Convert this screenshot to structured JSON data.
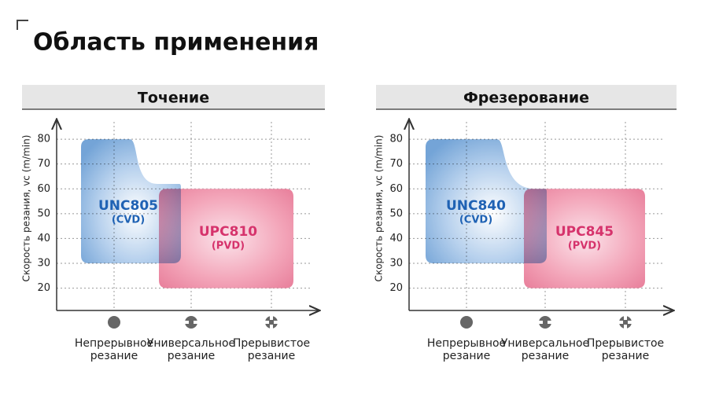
{
  "title": "Область применения",
  "panels": [
    {
      "heading": "Точение",
      "y_label": "Скорость резания, vc (m/min)",
      "ylim": [
        11,
        87
      ],
      "yticks": [
        20,
        30,
        40,
        50,
        60,
        70,
        80
      ],
      "categories": [
        [
          "Непрерывное",
          "резание"
        ],
        [
          "Универсальное",
          "резание"
        ],
        [
          "Прерывистое",
          "резание"
        ]
      ],
      "regions": [
        {
          "label": "UNC805",
          "sublabel": "(CVD)",
          "low": 30,
          "high": 80,
          "step": 62
        },
        {
          "label": "UPC810",
          "sublabel": "(PVD)",
          "low": 20,
          "high": 60
        }
      ]
    },
    {
      "heading": "Фрезерование",
      "y_label": "Скорость резания, vc (m/min)",
      "ylim": [
        11,
        87
      ],
      "yticks": [
        20,
        30,
        40,
        50,
        60,
        70,
        80
      ],
      "categories": [
        [
          "Непрерывное",
          "резание"
        ],
        [
          "Универсальное",
          "резание"
        ],
        [
          "Прерывистое",
          "резание"
        ]
      ],
      "regions": [
        {
          "label": "UNC840",
          "sublabel": "(CVD)",
          "low": 30,
          "high": 80,
          "step": 60
        },
        {
          "label": "UPC845",
          "sublabel": "(PVD)",
          "low": 20,
          "high": 60
        }
      ]
    }
  ]
}
